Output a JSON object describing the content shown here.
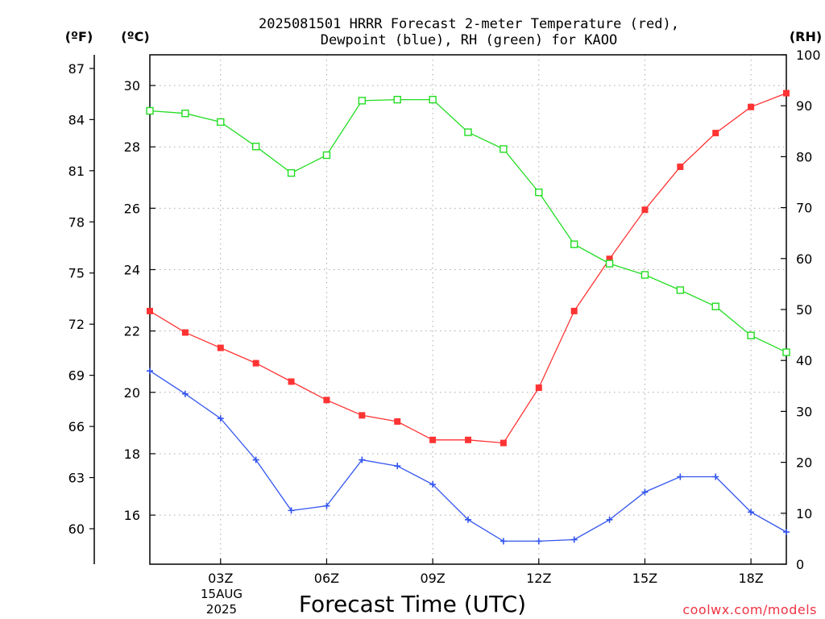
{
  "chart_data": {
    "type": "line",
    "title_line1": "2025081501 HRRR Forecast 2-meter Temperature (red),",
    "title_line2": "Dewpoint (blue), RH (green) for KAOO",
    "xlabel": "Forecast Time (UTC)",
    "x_ticks": [
      "03Z",
      "06Z",
      "09Z",
      "12Z",
      "15Z",
      "18Z"
    ],
    "x_date_line1": "15AUG",
    "x_date_line2": "2025",
    "x_hours": [
      1,
      19
    ],
    "left_axis_c": {
      "label": "(ºC)",
      "range": [
        14.4,
        31
      ],
      "ticks": [
        "16",
        "18",
        "20",
        "22",
        "24",
        "26",
        "28",
        "30"
      ]
    },
    "left_axis_f": {
      "label": "(ºF)",
      "ticks": [
        "60",
        "63",
        "66",
        "69",
        "72",
        "75",
        "78",
        "81",
        "84",
        "87"
      ]
    },
    "right_axis_rh": {
      "label": "(RH)",
      "range": [
        0,
        100
      ],
      "ticks": [
        "0",
        "10",
        "20",
        "30",
        "40",
        "50",
        "60",
        "70",
        "80",
        "90",
        "100"
      ]
    },
    "grid": true,
    "series": [
      {
        "name": "Temperature",
        "axis": "C",
        "color": "#ff3333",
        "marker": "filled-square",
        "x": [
          1,
          2,
          3,
          4,
          5,
          6,
          7,
          8,
          9,
          10,
          11,
          12,
          13,
          14,
          15,
          16,
          17,
          18,
          19
        ],
        "values": [
          22.65,
          21.95,
          21.45,
          20.95,
          20.35,
          19.75,
          19.25,
          19.05,
          18.45,
          18.45,
          18.35,
          20.15,
          22.65,
          24.35,
          25.95,
          27.35,
          28.45,
          29.3,
          29.75
        ]
      },
      {
        "name": "Dewpoint",
        "axis": "C",
        "color": "#3355ee",
        "marker": "plus",
        "x": [
          1,
          2,
          3,
          4,
          5,
          6,
          7,
          8,
          9,
          10,
          11,
          12,
          13,
          14,
          15,
          16,
          17,
          18,
          19
        ],
        "values": [
          20.7,
          19.95,
          19.15,
          17.8,
          16.15,
          16.3,
          17.8,
          17.6,
          17.0,
          15.85,
          15.15,
          15.15,
          15.2,
          15.85,
          16.75,
          17.25,
          17.25,
          16.1,
          15.45
        ]
      },
      {
        "name": "RH",
        "axis": "RH",
        "color": "#22dd22",
        "marker": "open-square",
        "x": [
          1,
          2,
          3,
          4,
          5,
          6,
          7,
          8,
          9,
          10,
          11,
          12,
          13,
          14,
          15,
          16,
          17,
          18,
          19
        ],
        "values": [
          89,
          88.5,
          86.8,
          82,
          76.8,
          80.3,
          91,
          91.2,
          91.2,
          84.8,
          81.5,
          73,
          62.8,
          59,
          56.8,
          53.8,
          50.6,
          44.9,
          41.6
        ]
      }
    ]
  },
  "credit": "coolwx.com/models"
}
